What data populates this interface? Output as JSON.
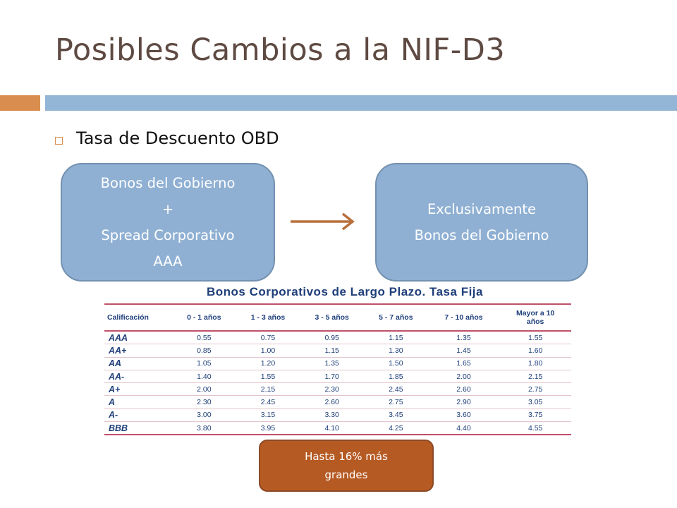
{
  "slide": {
    "title": "Posibles Cambios a la NIF-D3",
    "bullet": "Tasa de Descuento OBD"
  },
  "box_left": {
    "line1": "Bonos del Gobierno",
    "line2": "+",
    "line3": "Spread Corporativo",
    "line4": "AAA"
  },
  "box_right": {
    "line1": "Exclusivamente",
    "line2": "Bonos del Gobierno"
  },
  "table": {
    "title": "Bonos Corporativos de Largo Plazo. Tasa Fija",
    "headers": [
      "Calificación",
      "0 - 1 años",
      "1 - 3 años",
      "3 - 5 años",
      "5 - 7 años",
      "7 - 10 años",
      "Mayor a 10",
      "años"
    ],
    "rows": [
      [
        "AAA",
        "0.55",
        "0.75",
        "0.95",
        "1.15",
        "1.35",
        "1.55"
      ],
      [
        "AA+",
        "0.85",
        "1.00",
        "1.15",
        "1.30",
        "1.45",
        "1.60"
      ],
      [
        "AA",
        "1.05",
        "1.20",
        "1.35",
        "1.50",
        "1.65",
        "1.80"
      ],
      [
        "AA-",
        "1.40",
        "1.55",
        "1.70",
        "1.85",
        "2.00",
        "2.15"
      ],
      [
        "A+",
        "2.00",
        "2.15",
        "2.30",
        "2.45",
        "2.60",
        "2.75"
      ],
      [
        "A",
        "2.30",
        "2.45",
        "2.60",
        "2.75",
        "2.90",
        "3.05"
      ],
      [
        "A-",
        "3.00",
        "3.15",
        "3.30",
        "3.45",
        "3.60",
        "3.75"
      ],
      [
        "BBB",
        "3.80",
        "3.95",
        "4.10",
        "4.25",
        "4.40",
        "4.55"
      ]
    ]
  },
  "callout": {
    "line1": "Hasta 16% más",
    "line2": "grandes"
  },
  "colors": {
    "title": "#5e4a42",
    "accent_orange": "#d98e4f",
    "accent_blue": "#93b5d6",
    "box_blue": "#8fb0d3",
    "table_text": "#1f3f7a",
    "table_rule": "#c0506a",
    "callout": "#b65a23",
    "arrow": "#b8703d"
  },
  "icons": {
    "bullet": "hollow-square-bullet",
    "arrow": "right-arrow-icon"
  }
}
